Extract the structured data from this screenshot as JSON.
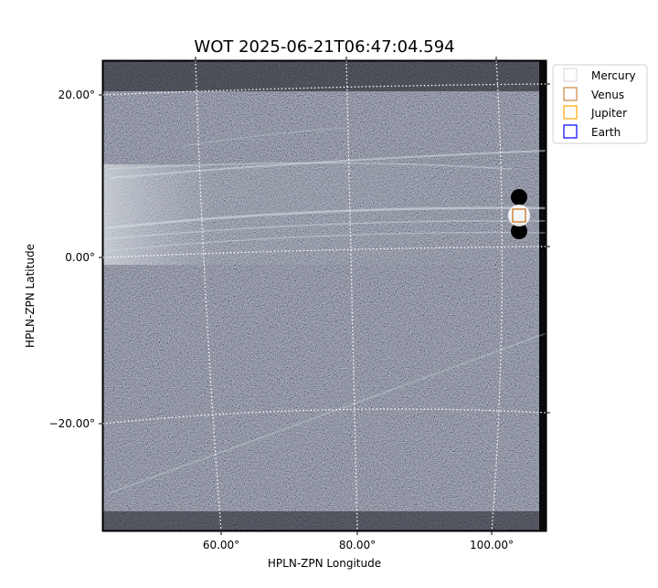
{
  "chart_data": {
    "type": "image",
    "title": "WOT 2025-06-21T06:47:04.594",
    "xlabel": "HPLN-ZPN Longitude",
    "ylabel": "HPLN-ZPN Latitude",
    "x_ticks": [
      "60.00°",
      "80.00°",
      "100.00°"
    ],
    "y_ticks": [
      "20.00°",
      "0.00°",
      "−20.00°"
    ],
    "grid": true,
    "colormap": "bone",
    "legend": {
      "placement": "outside-top-right",
      "entries": [
        {
          "name": "Mercury",
          "color": "#dddddd"
        },
        {
          "name": "Venus",
          "color": "#cd853f"
        },
        {
          "name": "Jupiter",
          "color": "#ffa500"
        },
        {
          "name": "Earth",
          "color": "#0000ff"
        }
      ]
    },
    "markers": [
      {
        "name": "Venus",
        "lon": 104,
        "lat": 5.5,
        "color": "#cd853f"
      }
    ]
  }
}
